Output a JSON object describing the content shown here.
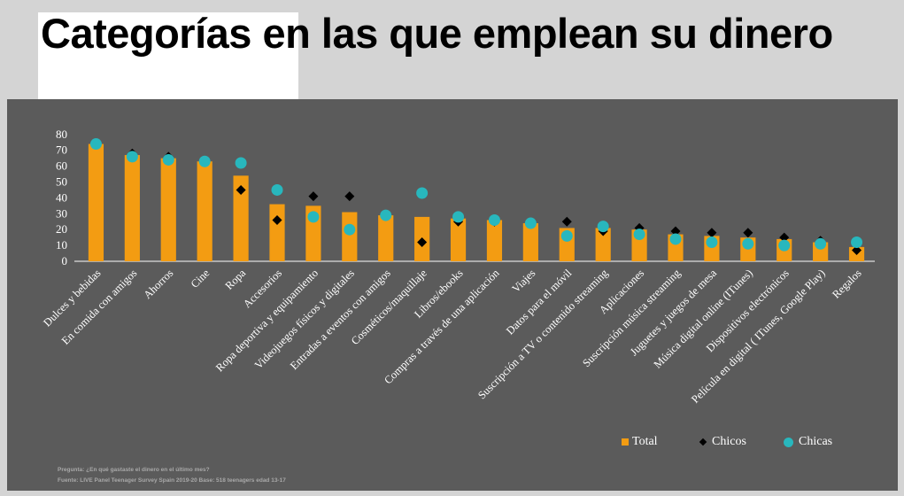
{
  "title": "Categorías en las que emplean su dinero",
  "chart_data": {
    "type": "bar",
    "categories": [
      "Dulces y bebidas",
      "En comida con amigos",
      "Ahorros",
      "Cine",
      "Ropa",
      "Accesorios",
      "Ropa deportiva y equipamiento",
      "Videojuegos físicos y digitales",
      "Entradas a eventos con amigos",
      "Cosméticos/maquillaje",
      "Libros/ebooks",
      "Compras a través de una aplicación",
      "Viajes",
      "Datos para el móvil",
      "Suscripción a TV o contenido streaming",
      "Aplicaciones",
      "Suscripción música streaming",
      "Juguetes y juegos de mesa",
      "Música digital online (ITunes)",
      "Dispositivos electrónicos",
      "Película en digital ( ITunes, Google Play)",
      "Regalos"
    ],
    "series": [
      {
        "name": "Total",
        "type": "bar",
        "color": "#f39c12",
        "values": [
          74,
          67,
          65,
          63,
          54,
          36,
          35,
          31,
          29,
          28,
          27,
          26,
          24,
          21,
          21,
          20,
          17,
          16,
          15,
          14,
          12,
          9
        ]
      },
      {
        "name": "Chicos",
        "type": "diamond",
        "color": "#000000",
        "values": [
          74,
          68,
          66,
          63,
          45,
          26,
          41,
          41,
          29,
          12,
          25,
          25,
          24,
          25,
          19,
          21,
          19,
          18,
          18,
          15,
          13,
          7
        ]
      },
      {
        "name": "Chicas",
        "type": "dot",
        "color": "#28b7bd",
        "values": [
          74,
          66,
          64,
          63,
          62,
          45,
          28,
          20,
          29,
          43,
          28,
          26,
          24,
          16,
          22,
          17,
          14,
          12,
          11,
          10,
          11,
          12
        ]
      }
    ],
    "yticks": [
      0,
      10,
      20,
      30,
      40,
      50,
      60,
      70,
      80
    ],
    "ylim": [
      0,
      80
    ],
    "grid": false,
    "legend_position": "bottom-right"
  },
  "footnote": {
    "question": "Pregunta: ¿En qué gastaste el dinero en el último mes?",
    "source": "Fuente: LIVE Panel Teenager Survey Spain 2019-20 Base: 518 teenagers edad 13-17"
  }
}
